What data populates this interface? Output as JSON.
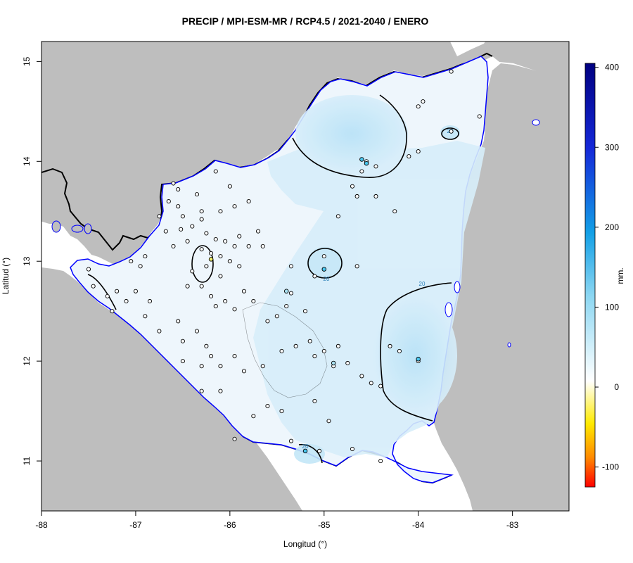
{
  "title": "PRECIP / MPI-ESM-MR / RCP4.5 / 2021-2040 / ENERO",
  "x_axis": {
    "label": "Longitud (°)",
    "ticks": [
      "-88",
      "-87",
      "-86",
      "-85",
      "-84",
      "-83"
    ]
  },
  "y_axis": {
    "label": "Latitud (°)",
    "ticks": [
      "11",
      "12",
      "13",
      "14",
      "15"
    ]
  },
  "legend": {
    "unit": "mm.",
    "ticks": [
      "400",
      "300",
      "200",
      "100",
      "0",
      "-100"
    ]
  },
  "contour_labels": [
    "20",
    "20",
    "20",
    "20"
  ],
  "colors": {
    "ocean_land": "#bebebe",
    "coast": "#0000ff",
    "border": "#000000",
    "scale_top": "#000080",
    "scale_zero": "#ffffff",
    "scale_bottom": "#ff0000"
  },
  "stations": [
    [
      -86.6,
      13.78
    ],
    [
      -86.55,
      13.72
    ],
    [
      -86.35,
      13.67
    ],
    [
      -86.15,
      13.9
    ],
    [
      -86.0,
      13.75
    ],
    [
      -86.65,
      13.6
    ],
    [
      -86.55,
      13.55
    ],
    [
      -86.3,
      13.5
    ],
    [
      -86.1,
      13.5
    ],
    [
      -85.95,
      13.55
    ],
    [
      -85.8,
      13.6
    ],
    [
      -86.5,
      13.45
    ],
    [
      -86.3,
      13.42
    ],
    [
      -86.75,
      13.45
    ],
    [
      -86.68,
      13.3
    ],
    [
      -86.52,
      13.32
    ],
    [
      -86.4,
      13.35
    ],
    [
      -86.25,
      13.28
    ],
    [
      -86.15,
      13.22
    ],
    [
      -86.05,
      13.2
    ],
    [
      -85.9,
      13.25
    ],
    [
      -86.6,
      13.15
    ],
    [
      -86.45,
      13.2
    ],
    [
      -86.3,
      13.12
    ],
    [
      -86.2,
      13.08
    ],
    [
      -86.1,
      13.05
    ],
    [
      -85.95,
      13.15
    ],
    [
      -85.8,
      13.15
    ],
    [
      -85.7,
      13.3
    ],
    [
      -85.65,
      13.15
    ],
    [
      -86.0,
      13.0
    ],
    [
      -85.9,
      12.95
    ],
    [
      -86.25,
      12.95
    ],
    [
      -86.4,
      12.9
    ],
    [
      -86.1,
      12.85
    ],
    [
      -86.3,
      12.75
    ],
    [
      -86.45,
      12.75
    ],
    [
      -86.2,
      12.65
    ],
    [
      -86.05,
      12.6
    ],
    [
      -85.85,
      12.7
    ],
    [
      -85.75,
      12.6
    ],
    [
      -85.95,
      12.52
    ],
    [
      -85.6,
      12.4
    ],
    [
      -85.5,
      12.45
    ],
    [
      -85.4,
      12.55
    ],
    [
      -85.35,
      12.68
    ],
    [
      -85.2,
      12.5
    ],
    [
      -86.55,
      12.4
    ],
    [
      -86.15,
      12.55
    ],
    [
      -86.35,
      12.3
    ],
    [
      -86.5,
      12.2
    ],
    [
      -86.25,
      12.15
    ],
    [
      -86.2,
      12.05
    ],
    [
      -86.3,
      11.95
    ],
    [
      -86.1,
      11.95
    ],
    [
      -85.95,
      12.05
    ],
    [
      -85.85,
      11.9
    ],
    [
      -85.65,
      11.95
    ],
    [
      -85.45,
      12.1
    ],
    [
      -85.3,
      12.15
    ],
    [
      -85.15,
      12.2
    ],
    [
      -85.0,
      12.1
    ],
    [
      -85.1,
      12.05
    ],
    [
      -84.9,
      11.95
    ],
    [
      -84.75,
      11.98
    ],
    [
      -84.6,
      11.85
    ],
    [
      -84.5,
      11.78
    ],
    [
      -84.4,
      11.75
    ],
    [
      -84.3,
      12.15
    ],
    [
      -84.2,
      12.1
    ],
    [
      -84.0,
      12.0
    ],
    [
      -84.85,
      12.15
    ],
    [
      -85.6,
      11.55
    ],
    [
      -85.75,
      11.45
    ],
    [
      -85.45,
      11.5
    ],
    [
      -85.1,
      11.6
    ],
    [
      -84.95,
      11.4
    ],
    [
      -85.35,
      11.2
    ],
    [
      -85.05,
      11.1
    ],
    [
      -84.7,
      11.12
    ],
    [
      -84.4,
      11.0
    ],
    [
      -85.95,
      11.22
    ],
    [
      -86.1,
      11.7
    ],
    [
      -86.3,
      11.7
    ],
    [
      -86.5,
      12.0
    ],
    [
      -86.75,
      12.3
    ],
    [
      -86.9,
      12.45
    ],
    [
      -87.0,
      12.7
    ],
    [
      -87.1,
      12.6
    ],
    [
      -87.2,
      12.7
    ],
    [
      -87.25,
      12.5
    ],
    [
      -86.85,
      12.6
    ],
    [
      -87.5,
      12.92
    ],
    [
      -87.45,
      12.75
    ],
    [
      -87.3,
      12.65
    ],
    [
      -86.95,
      12.95
    ],
    [
      -86.9,
      13.05
    ],
    [
      -87.05,
      13.0
    ],
    [
      -84.85,
      13.45
    ],
    [
      -84.65,
      13.65
    ],
    [
      -84.45,
      13.65
    ],
    [
      -84.25,
      13.5
    ],
    [
      -84.7,
      13.75
    ],
    [
      -84.6,
      13.9
    ],
    [
      -84.45,
      13.95
    ],
    [
      -84.1,
      14.05
    ],
    [
      -84.0,
      14.1
    ],
    [
      -84.0,
      14.55
    ],
    [
      -83.95,
      14.6
    ],
    [
      -83.35,
      14.45
    ],
    [
      -83.65,
      14.9
    ],
    [
      -85.0,
      13.05
    ],
    [
      -85.1,
      12.85
    ],
    [
      -85.35,
      12.95
    ],
    [
      -84.65,
      12.95
    ],
    [
      -84.55,
      14.0
    ],
    [
      -83.65,
      14.3
    ]
  ],
  "colored_stations": [
    {
      "lon": -86.2,
      "lat": 13.02,
      "color": "#f2f06a"
    },
    {
      "lon": -85.0,
      "lat": 12.92,
      "color": "#49c6ef"
    },
    {
      "lon": -84.6,
      "lat": 14.02,
      "color": "#49c6ef"
    },
    {
      "lon": -84.55,
      "lat": 13.98,
      "color": "#49c6ef"
    },
    {
      "lon": -84.0,
      "lat": 12.02,
      "color": "#49c6ef"
    },
    {
      "lon": -85.2,
      "lat": 11.1,
      "color": "#49c6ef"
    },
    {
      "lon": -85.4,
      "lat": 12.7,
      "color": "#a8e0f0"
    },
    {
      "lon": -84.9,
      "lat": 11.98,
      "color": "#a8e0f0"
    }
  ]
}
